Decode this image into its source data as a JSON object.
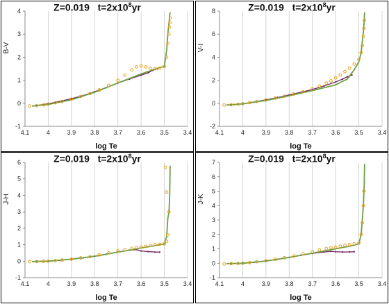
{
  "chart_data": [
    {
      "type": "scatter",
      "title": "Z=0.019",
      "title_age_prefix": "t=2x10",
      "title_age_exp": "8",
      "title_age_unit": "yr",
      "xlabel": "log Te",
      "ylabel": "B-V",
      "xlim": [
        4.1,
        3.4
      ],
      "ylim": [
        -1,
        4
      ],
      "xticks": [
        "4.1",
        "4",
        "3.9",
        "3.8",
        "3.7",
        "3.6",
        "3.5",
        "3.4"
      ],
      "yticks": [
        "-1",
        "0",
        "1",
        "2",
        "3",
        "4"
      ],
      "grid": "vertical",
      "series": [
        {
          "color": "#7b2a6b",
          "style": "line-points",
          "x": [
            4.05,
            4.0,
            3.95,
            3.9,
            3.85,
            3.8,
            3.75,
            3.7,
            3.65,
            3.6,
            3.57,
            3.55,
            3.53
          ],
          "y": [
            -0.1,
            -0.02,
            0.08,
            0.2,
            0.33,
            0.5,
            0.68,
            0.88,
            1.05,
            1.22,
            1.32,
            1.43,
            1.5
          ]
        },
        {
          "color": "#6aa040",
          "style": "line",
          "x": [
            4.07,
            4.0,
            3.9,
            3.8,
            3.7,
            3.6,
            3.55,
            3.52,
            3.5,
            3.49,
            3.485,
            3.48,
            3.477,
            3.475
          ],
          "y": [
            -0.12,
            -0.05,
            0.15,
            0.48,
            0.88,
            1.27,
            1.45,
            1.55,
            1.6,
            2.3,
            3.0,
            3.5,
            3.8,
            3.95
          ]
        },
        {
          "color": "#e8a020",
          "style": "points",
          "x": [
            4.08,
            4.05,
            4.02,
            4.0,
            3.97,
            3.94,
            3.9,
            3.86,
            3.82,
            3.78,
            3.74,
            3.7,
            3.67,
            3.64,
            3.62,
            3.6,
            3.58,
            3.56,
            3.54,
            3.52,
            3.5,
            3.49,
            3.485,
            3.48,
            3.478,
            3.476,
            3.474
          ],
          "y": [
            -0.12,
            -0.1,
            -0.07,
            -0.04,
            0.02,
            0.08,
            0.18,
            0.3,
            0.42,
            0.58,
            0.78,
            1.0,
            1.22,
            1.45,
            1.58,
            1.62,
            1.58,
            1.52,
            1.5,
            1.52,
            1.6,
            2.0,
            2.6,
            3.0,
            3.3,
            3.5,
            3.7
          ]
        }
      ]
    },
    {
      "type": "scatter",
      "title": "Z=0.019",
      "title_age_prefix": "t=2x10",
      "title_age_exp": "8",
      "title_age_unit": "yr",
      "xlabel": "log Te",
      "ylabel": "V-I",
      "xlim": [
        4.1,
        3.4
      ],
      "ylim": [
        -2,
        8
      ],
      "xticks": [
        "4.1",
        "4",
        "3.9",
        "3.8",
        "3.7",
        "3.6",
        "3.5",
        "3.4"
      ],
      "yticks": [
        "-2",
        "0",
        "2",
        "4",
        "6",
        "8"
      ],
      "grid": "vertical",
      "series": [
        {
          "color": "#7b2a6b",
          "style": "line-points",
          "x": [
            4.05,
            4.0,
            3.95,
            3.9,
            3.85,
            3.8,
            3.75,
            3.7,
            3.65,
            3.6,
            3.57,
            3.55,
            3.53
          ],
          "y": [
            -0.15,
            -0.05,
            0.1,
            0.3,
            0.5,
            0.72,
            0.95,
            1.2,
            1.5,
            1.85,
            2.1,
            2.3,
            2.45
          ]
        },
        {
          "color": "#6aa040",
          "style": "line",
          "x": [
            4.07,
            4.0,
            3.9,
            3.8,
            3.7,
            3.6,
            3.55,
            3.52,
            3.5,
            3.49,
            3.485,
            3.48,
            3.477,
            3.475
          ],
          "y": [
            -0.15,
            -0.05,
            0.25,
            0.65,
            1.1,
            1.6,
            2.1,
            2.9,
            3.6,
            4.4,
            5.4,
            6.3,
            7.2,
            7.9
          ]
        },
        {
          "color": "#e8a020",
          "style": "points",
          "x": [
            4.08,
            4.05,
            4.02,
            4.0,
            3.97,
            3.94,
            3.9,
            3.86,
            3.82,
            3.78,
            3.74,
            3.7,
            3.67,
            3.64,
            3.62,
            3.6,
            3.58,
            3.56,
            3.54,
            3.52,
            3.5,
            3.49,
            3.485,
            3.48,
            3.478,
            3.476
          ],
          "y": [
            -0.15,
            -0.12,
            -0.08,
            -0.04,
            0.05,
            0.15,
            0.28,
            0.45,
            0.62,
            0.8,
            1.0,
            1.25,
            1.5,
            1.75,
            1.95,
            2.2,
            2.45,
            2.75,
            3.05,
            3.4,
            3.8,
            4.4,
            5.0,
            5.8,
            6.5,
            7.2
          ]
        }
      ]
    },
    {
      "type": "scatter",
      "title": "Z=0.019",
      "title_age_prefix": "t=2x10",
      "title_age_exp": "8",
      "title_age_unit": "yr",
      "xlabel": "log Te",
      "ylabel": "J-H",
      "xlim": [
        4.1,
        3.4
      ],
      "ylim": [
        -1,
        6
      ],
      "xticks": [
        "4.1",
        "4",
        "3.9",
        "3.8",
        "3.7",
        "3.6",
        "3.5",
        "3.4"
      ],
      "yticks": [
        "-1",
        "0",
        "1",
        "2",
        "3",
        "4",
        "5",
        "6"
      ],
      "grid": "vertical",
      "series": [
        {
          "color": "#7b2a6b",
          "style": "line-points",
          "x": [
            4.05,
            4.0,
            3.95,
            3.9,
            3.85,
            3.8,
            3.75,
            3.7,
            3.65,
            3.62,
            3.6,
            3.57,
            3.54,
            3.52
          ],
          "y": [
            -0.02,
            0.0,
            0.05,
            0.12,
            0.2,
            0.3,
            0.42,
            0.55,
            0.67,
            0.7,
            0.62,
            0.58,
            0.55,
            0.55
          ]
        },
        {
          "color": "#6aa040",
          "style": "line",
          "x": [
            4.07,
            4.0,
            3.9,
            3.8,
            3.7,
            3.6,
            3.55,
            3.52,
            3.5,
            3.49,
            3.485,
            3.48,
            3.477,
            3.475
          ],
          "y": [
            -0.02,
            0.0,
            0.12,
            0.3,
            0.55,
            0.8,
            0.92,
            1.0,
            1.05,
            1.5,
            2.6,
            3.0,
            4.0,
            5.8
          ]
        },
        {
          "color": "#e8a020",
          "style": "points",
          "x": [
            4.08,
            4.05,
            4.02,
            4.0,
            3.97,
            3.94,
            3.9,
            3.86,
            3.82,
            3.78,
            3.74,
            3.7,
            3.67,
            3.64,
            3.62,
            3.6,
            3.58,
            3.56,
            3.54,
            3.52,
            3.5,
            3.49,
            3.485,
            3.48,
            3.49,
            3.495
          ],
          "y": [
            -0.03,
            -0.02,
            -0.01,
            0.0,
            0.03,
            0.07,
            0.12,
            0.2,
            0.28,
            0.38,
            0.5,
            0.62,
            0.7,
            0.78,
            0.82,
            0.86,
            0.9,
            0.95,
            1.0,
            1.02,
            1.05,
            1.2,
            1.6,
            3.0,
            4.2,
            5.7
          ]
        }
      ]
    },
    {
      "type": "scatter",
      "title": "Z=0.019",
      "title_age_prefix": "t=2x10",
      "title_age_exp": "8",
      "title_age_unit": "yr",
      "xlabel": "log Te",
      "ylabel": "J-K",
      "xlim": [
        4.1,
        3.4
      ],
      "ylim": [
        -1,
        7
      ],
      "xticks": [
        "4.1",
        "4",
        "3.9",
        "3.8",
        "3.7",
        "3.6",
        "3.5",
        "3.4"
      ],
      "yticks": [
        "-1",
        "0",
        "1",
        "2",
        "3",
        "4",
        "5",
        "6",
        "7"
      ],
      "grid": "vertical",
      "series": [
        {
          "color": "#7b2a6b",
          "style": "line-points",
          "x": [
            4.05,
            4.0,
            3.95,
            3.9,
            3.85,
            3.8,
            3.75,
            3.7,
            3.65,
            3.62,
            3.6,
            3.57,
            3.54,
            3.52
          ],
          "y": [
            -0.03,
            0.0,
            0.07,
            0.16,
            0.27,
            0.4,
            0.55,
            0.68,
            0.78,
            0.82,
            0.8,
            0.78,
            0.78,
            0.8
          ]
        },
        {
          "color": "#6aa040",
          "style": "line",
          "x": [
            4.07,
            4.0,
            3.9,
            3.8,
            3.7,
            3.6,
            3.55,
            3.52,
            3.5,
            3.49,
            3.485,
            3.48,
            3.477,
            3.475
          ],
          "y": [
            -0.03,
            0.0,
            0.15,
            0.4,
            0.7,
            1.0,
            1.15,
            1.25,
            1.35,
            2.0,
            3.0,
            4.2,
            5.5,
            6.9
          ]
        },
        {
          "color": "#e8a020",
          "style": "points",
          "x": [
            4.08,
            4.05,
            4.02,
            4.0,
            3.97,
            3.94,
            3.9,
            3.86,
            3.82,
            3.78,
            3.74,
            3.7,
            3.67,
            3.64,
            3.62,
            3.6,
            3.58,
            3.56,
            3.54,
            3.52,
            3.5,
            3.49,
            3.485,
            3.48,
            3.478
          ],
          "y": [
            -0.05,
            -0.03,
            -0.02,
            0.0,
            0.04,
            0.1,
            0.17,
            0.27,
            0.38,
            0.5,
            0.65,
            0.8,
            0.92,
            1.02,
            1.08,
            1.12,
            1.18,
            1.24,
            1.3,
            1.35,
            1.4,
            2.0,
            2.8,
            4.0,
            5.0
          ]
        }
      ]
    }
  ]
}
